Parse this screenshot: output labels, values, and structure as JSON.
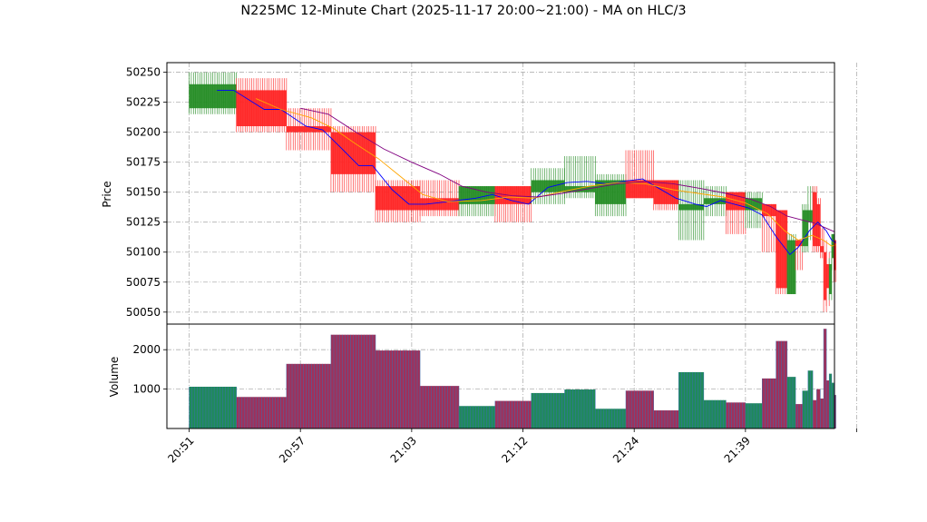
{
  "chart_data": {
    "type": "candlestick",
    "title": "N225MC 12-Minute Chart (2025-11-17 20:00~21:00) - MA on HLC/3",
    "price_panel": {
      "ylabel": "Price",
      "ylim": [
        50040,
        50258
      ],
      "yticks": [
        50050,
        50075,
        50100,
        50125,
        50150,
        50175,
        50200,
        50225,
        50250
      ]
    },
    "volume_panel": {
      "ylabel": "Volume",
      "ylim": [
        0,
        2650
      ],
      "yticks": [
        1000,
        2000
      ]
    },
    "xlim": [
      -0.8,
      23.2
    ],
    "xticks": [
      {
        "pos": 0,
        "label": "20:51"
      },
      {
        "pos": 4,
        "label": "20:57"
      },
      {
        "pos": 8,
        "label": "21:03"
      },
      {
        "pos": 12,
        "label": "21:12"
      },
      {
        "pos": 16,
        "label": "21:24"
      },
      {
        "pos": 20,
        "label": "21:39"
      },
      {
        "pos": 24,
        "label": ""
      }
    ],
    "up_color": "#228B22",
    "down_color": "#FF2222",
    "candles": [
      {
        "x": 0.0,
        "w": 1.7,
        "open": 50220,
        "high": 50250,
        "low": 50215,
        "close": 50240,
        "volume": 1060
      },
      {
        "x": 1.7,
        "w": 1.8,
        "open": 50235,
        "high": 50245,
        "low": 50200,
        "close": 50205,
        "volume": 800
      },
      {
        "x": 3.5,
        "w": 1.6,
        "open": 50205,
        "high": 50220,
        "low": 50185,
        "close": 50200,
        "volume": 1640
      },
      {
        "x": 5.1,
        "w": 1.6,
        "open": 50200,
        "high": 50205,
        "low": 50150,
        "close": 50165,
        "volume": 2380
      },
      {
        "x": 6.7,
        "w": 1.6,
        "open": 50155,
        "high": 50160,
        "low": 50125,
        "close": 50135,
        "volume": 1980
      },
      {
        "x": 8.3,
        "w": 1.4,
        "open": 50145,
        "high": 50160,
        "low": 50130,
        "close": 50135,
        "volume": 1080
      },
      {
        "x": 9.7,
        "w": 1.3,
        "open": 50140,
        "high": 50155,
        "low": 50130,
        "close": 50155,
        "volume": 570
      },
      {
        "x": 11.0,
        "w": 1.3,
        "open": 50155,
        "high": 50155,
        "low": 50125,
        "close": 50140,
        "volume": 700
      },
      {
        "x": 12.3,
        "w": 1.2,
        "open": 50150,
        "high": 50170,
        "low": 50140,
        "close": 50160,
        "volume": 900
      },
      {
        "x": 13.5,
        "w": 1.1,
        "open": 50150,
        "high": 50180,
        "low": 50145,
        "close": 50155,
        "volume": 990
      },
      {
        "x": 14.6,
        "w": 1.1,
        "open": 50140,
        "high": 50165,
        "low": 50130,
        "close": 50160,
        "volume": 500
      },
      {
        "x": 15.7,
        "w": 1.0,
        "open": 50160,
        "high": 50185,
        "low": 50145,
        "close": 50145,
        "volume": 960
      },
      {
        "x": 16.7,
        "w": 0.9,
        "open": 50160,
        "high": 50160,
        "low": 50135,
        "close": 50140,
        "volume": 460
      },
      {
        "x": 17.6,
        "w": 0.9,
        "open": 50135,
        "high": 50160,
        "low": 50110,
        "close": 50140,
        "volume": 1430
      },
      {
        "x": 18.5,
        "w": 0.8,
        "open": 50140,
        "high": 50155,
        "low": 50130,
        "close": 50145,
        "volume": 720
      },
      {
        "x": 19.3,
        "w": 0.7,
        "open": 50150,
        "high": 50150,
        "low": 50115,
        "close": 50135,
        "volume": 660
      },
      {
        "x": 20.0,
        "w": 0.6,
        "open": 50135,
        "high": 50150,
        "low": 50120,
        "close": 50145,
        "volume": 640
      },
      {
        "x": 20.6,
        "w": 0.5,
        "open": 50140,
        "high": 50140,
        "low": 50100,
        "close": 50130,
        "volume": 1270
      },
      {
        "x": 21.1,
        "w": 0.4,
        "open": 50135,
        "high": 50135,
        "low": 50065,
        "close": 50070,
        "volume": 2220
      },
      {
        "x": 21.5,
        "w": 0.3,
        "open": 50065,
        "high": 50115,
        "low": 50065,
        "close": 50110,
        "volume": 1310
      },
      {
        "x": 21.8,
        "w": 0.25,
        "open": 50110,
        "high": 50110,
        "low": 50085,
        "close": 50105,
        "volume": 620
      },
      {
        "x": 22.05,
        "w": 0.2,
        "open": 50105,
        "high": 50140,
        "low": 50100,
        "close": 50135,
        "volume": 960
      },
      {
        "x": 22.25,
        "w": 0.17,
        "open": 50125,
        "high": 50155,
        "low": 50110,
        "close": 50135,
        "volume": 1470
      },
      {
        "x": 22.42,
        "w": 0.14,
        "open": 50150,
        "high": 50155,
        "low": 50100,
        "close": 50105,
        "volume": 720
      },
      {
        "x": 22.56,
        "w": 0.13,
        "open": 50140,
        "high": 50145,
        "low": 50100,
        "close": 50105,
        "volume": 1000
      },
      {
        "x": 22.69,
        "w": 0.12,
        "open": 50105,
        "high": 50120,
        "low": 50095,
        "close": 50100,
        "volume": 760
      },
      {
        "x": 22.81,
        "w": 0.1,
        "open": 50100,
        "high": 50110,
        "low": 50050,
        "close": 50060,
        "volume": 2530
      },
      {
        "x": 22.91,
        "w": 0.1,
        "open": 50090,
        "high": 50100,
        "low": 50055,
        "close": 50070,
        "volume": 1220
      },
      {
        "x": 23.01,
        "w": 0.09,
        "open": 50065,
        "high": 50095,
        "low": 50060,
        "close": 50090,
        "volume": 1390
      },
      {
        "x": 23.1,
        "w": 0.08,
        "open": 50095,
        "high": 50115,
        "low": 50085,
        "close": 50115,
        "volume": 1160
      },
      {
        "x": 23.18,
        "w": 0.07,
        "open": 50110,
        "high": 50110,
        "low": 50075,
        "close": 50085,
        "volume": 850
      }
    ],
    "ma_series": [
      {
        "color": "#0000FF",
        "points": [
          [
            1.0,
            50235
          ],
          [
            1.6,
            50235
          ],
          [
            2.7,
            50219
          ],
          [
            3.3,
            50219
          ],
          [
            4.2,
            50205
          ],
          [
            4.8,
            50202
          ],
          [
            5.5,
            50186
          ],
          [
            6.1,
            50172
          ],
          [
            6.6,
            50172
          ],
          [
            7.3,
            50152
          ],
          [
            7.9,
            50140
          ],
          [
            8.5,
            50140
          ],
          [
            9.3,
            50142
          ],
          [
            10.3,
            50145
          ],
          [
            10.9,
            50148
          ],
          [
            11.6,
            50143
          ],
          [
            12.2,
            50140
          ],
          [
            12.9,
            50154
          ],
          [
            13.6,
            50158
          ],
          [
            14.3,
            50159
          ],
          [
            15.0,
            50157
          ],
          [
            15.6,
            50159
          ],
          [
            16.3,
            50161
          ],
          [
            16.9,
            50153
          ],
          [
            17.5,
            50145
          ],
          [
            18.2,
            50140
          ],
          [
            18.6,
            50138
          ],
          [
            19.1,
            50143
          ],
          [
            19.6,
            50140
          ],
          [
            20.1,
            50137
          ],
          [
            20.6,
            50131
          ],
          [
            21.1,
            50113
          ],
          [
            21.6,
            50098
          ],
          [
            21.9,
            50104
          ],
          [
            22.3,
            50118
          ],
          [
            22.6,
            50125
          ],
          [
            22.9,
            50118
          ],
          [
            23.1,
            50110
          ],
          [
            23.25,
            50108
          ]
        ]
      },
      {
        "color": "#FFA500",
        "points": [
          [
            2.4,
            50228
          ],
          [
            3.3,
            50219
          ],
          [
            4.4,
            50212
          ],
          [
            5.2,
            50203
          ],
          [
            6.0,
            50190
          ],
          [
            6.8,
            50178
          ],
          [
            7.6,
            50163
          ],
          [
            8.4,
            50148
          ],
          [
            9.3,
            50142
          ],
          [
            10.5,
            50143
          ],
          [
            11.5,
            50146
          ],
          [
            12.4,
            50145
          ],
          [
            13.3,
            50150
          ],
          [
            14.4,
            50155
          ],
          [
            15.4,
            50158
          ],
          [
            16.4,
            50157
          ],
          [
            17.4,
            50152
          ],
          [
            18.3,
            50149
          ],
          [
            19.2,
            50146
          ],
          [
            20.0,
            50141
          ],
          [
            20.8,
            50132
          ],
          [
            21.4,
            50118
          ],
          [
            21.9,
            50110
          ],
          [
            22.4,
            50114
          ],
          [
            22.8,
            50110
          ],
          [
            23.1,
            50105
          ],
          [
            23.25,
            50106
          ]
        ]
      },
      {
        "color": "#800080",
        "points": [
          [
            4.0,
            50220
          ],
          [
            5.0,
            50215
          ],
          [
            6.0,
            50200
          ],
          [
            7.0,
            50186
          ],
          [
            8.0,
            50175
          ],
          [
            9.0,
            50165
          ],
          [
            9.8,
            50155
          ],
          [
            10.7,
            50150
          ],
          [
            11.6,
            50147
          ],
          [
            12.5,
            50146
          ],
          [
            13.4,
            50149
          ],
          [
            14.4,
            50153
          ],
          [
            15.4,
            50157
          ],
          [
            16.4,
            50159
          ],
          [
            17.4,
            50157
          ],
          [
            18.4,
            50153
          ],
          [
            19.3,
            50149
          ],
          [
            20.2,
            50144
          ],
          [
            20.9,
            50138
          ],
          [
            21.5,
            50130
          ],
          [
            22.0,
            50127
          ],
          [
            22.5,
            50124
          ],
          [
            22.9,
            50120
          ],
          [
            23.2,
            50117
          ]
        ]
      }
    ]
  }
}
